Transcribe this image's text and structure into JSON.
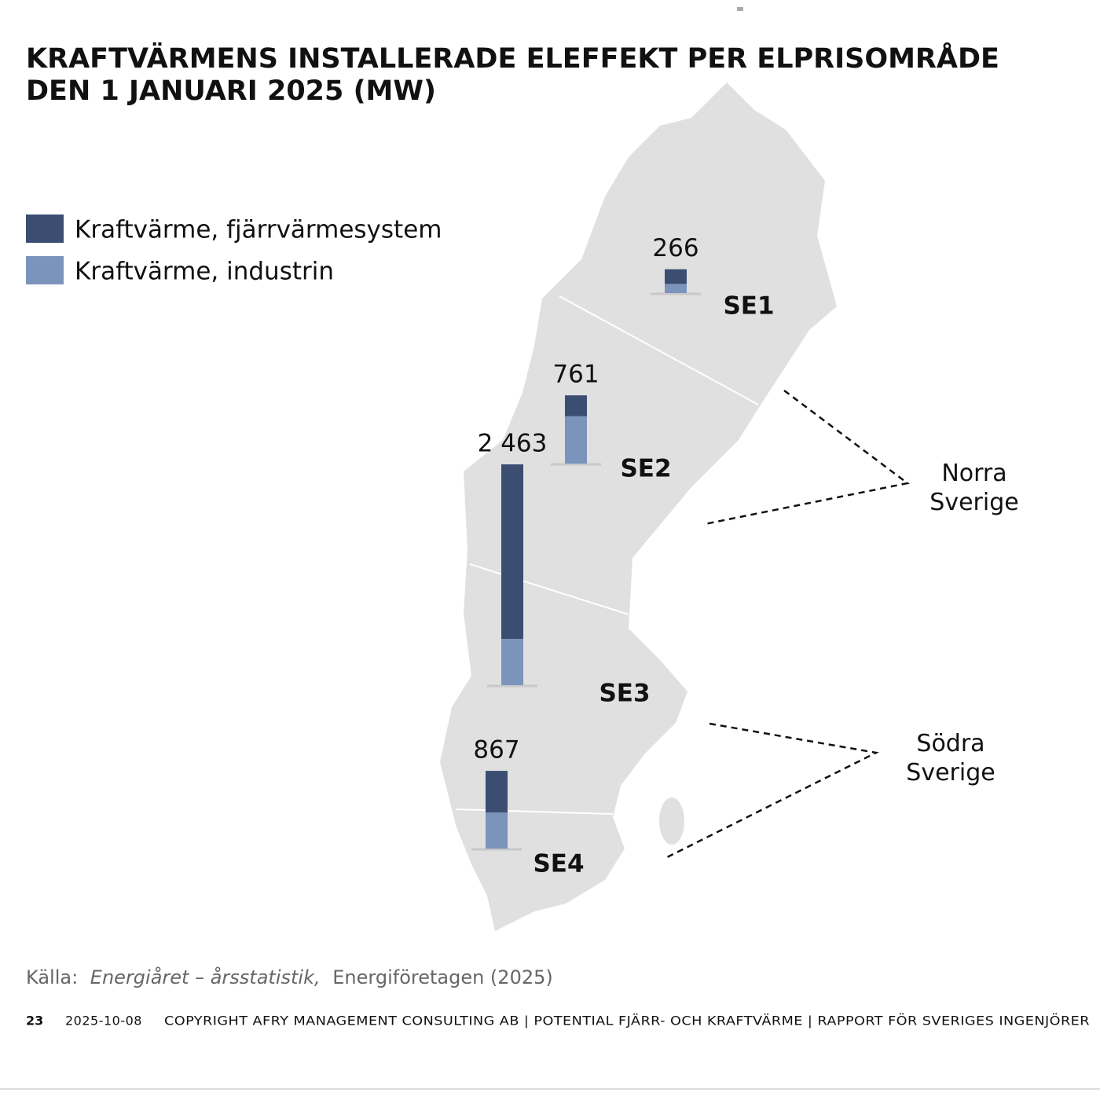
{
  "chart_data": {
    "type": "bar",
    "stacked": true,
    "title": [
      "KRAFTVÄRMENS INSTALLERADE ELEFFEKT PER ELPRISOMRÅDE",
      "DEN 1 JANUARI 2025 (MW)"
    ],
    "categories": [
      "SE1",
      "SE2",
      "SE3",
      "SE4"
    ],
    "series": [
      {
        "name": "Kraftvärme, fjärrvärmesystem",
        "color": "#3b4e72",
        "values": [
          164,
          233,
          1946,
          464
        ]
      },
      {
        "name": "Kraftvärme, industrin",
        "color": "#7b94bc",
        "values": [
          102,
          528,
          517,
          403
        ]
      }
    ],
    "totals": [
      266,
      761,
      2463,
      867
    ],
    "total_labels": [
      "266",
      "761",
      "2 463",
      "867"
    ],
    "annotations": [
      "Norra Sverige",
      "Södra Sverige"
    ],
    "source": [
      "Källa:",
      "Energiåret – årsstatistik,",
      "Energiföretagen (2025)"
    ],
    "footer": [
      "23",
      "2025-10-08",
      "COPYRIGHT AFRY MANAGEMENT CONSULTING AB | POTENTIAL FJÄRR- OCH KRAFTVÄRME | RAPPORT FÖR SVERIGES INGENJÖRER"
    ]
  }
}
